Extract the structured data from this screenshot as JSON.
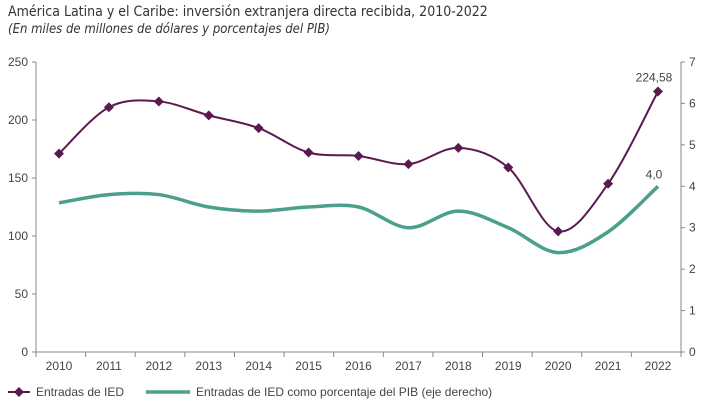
{
  "chart_data": {
    "type": "line",
    "title": "América Latina y el Caribe: inversión extranjera directa recibida, 2010-2022",
    "subtitle": "(En miles de millones de dólares y porcentajes del PIB)",
    "categories": [
      "2010",
      "2011",
      "2012",
      "2013",
      "2014",
      "2015",
      "2016",
      "2017",
      "2018",
      "2019",
      "2020",
      "2021",
      "2022"
    ],
    "y_left": {
      "range": [
        0,
        250
      ],
      "ticks": [
        "0",
        "50",
        "100",
        "150",
        "200",
        "250"
      ]
    },
    "y_right": {
      "range": [
        0,
        7
      ],
      "ticks": [
        "0",
        "1",
        "2",
        "3",
        "4",
        "5",
        "6",
        "7"
      ]
    },
    "grid": false,
    "legend_position": "bottom",
    "series": [
      {
        "name": "Entradas de IED",
        "axis": "left",
        "color": "#5b1a4f",
        "marker": "diamond",
        "values": [
          171,
          211,
          216,
          204,
          193,
          172,
          169,
          162,
          176,
          159,
          104,
          145,
          224.58
        ],
        "label": "224,58"
      },
      {
        "name": "Entradas de IED como porcentaje del PIB (eje derecho)",
        "axis": "right",
        "color": "#4aa08c",
        "marker": "none",
        "values": [
          3.6,
          3.8,
          3.8,
          3.5,
          3.4,
          3.5,
          3.5,
          3.0,
          3.4,
          3.0,
          2.4,
          2.9,
          4.0
        ],
        "label": "4,0"
      }
    ]
  }
}
